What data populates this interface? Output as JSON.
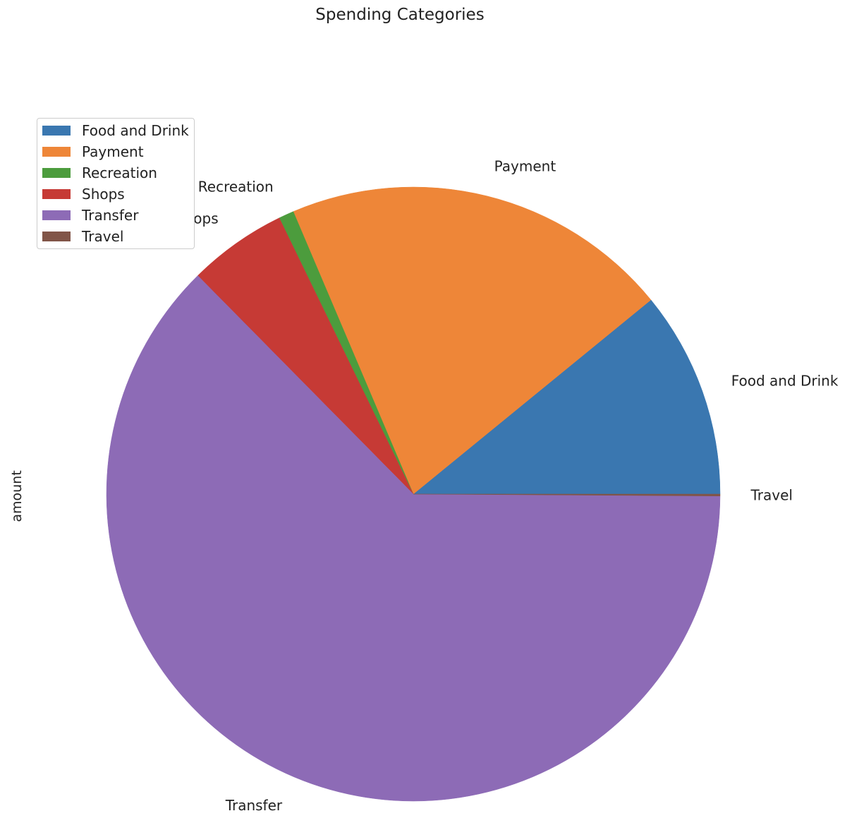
{
  "chart_data": {
    "type": "pie",
    "title": "Spending Categories",
    "ylabel": "amount",
    "legend": "top-left",
    "categories": [
      "Food and Drink",
      "Payment",
      "Recreation",
      "Shops",
      "Transfer",
      "Travel"
    ],
    "values": [
      10.9,
      20.5,
      0.8,
      5.2,
      62.5,
      0.1
    ],
    "colors": [
      "#3a77b0",
      "#ee8638",
      "#4c9c3d",
      "#c63a35",
      "#8d6bb6",
      "#815548"
    ],
    "start_angle": 0,
    "direction": "counterclockwise"
  }
}
